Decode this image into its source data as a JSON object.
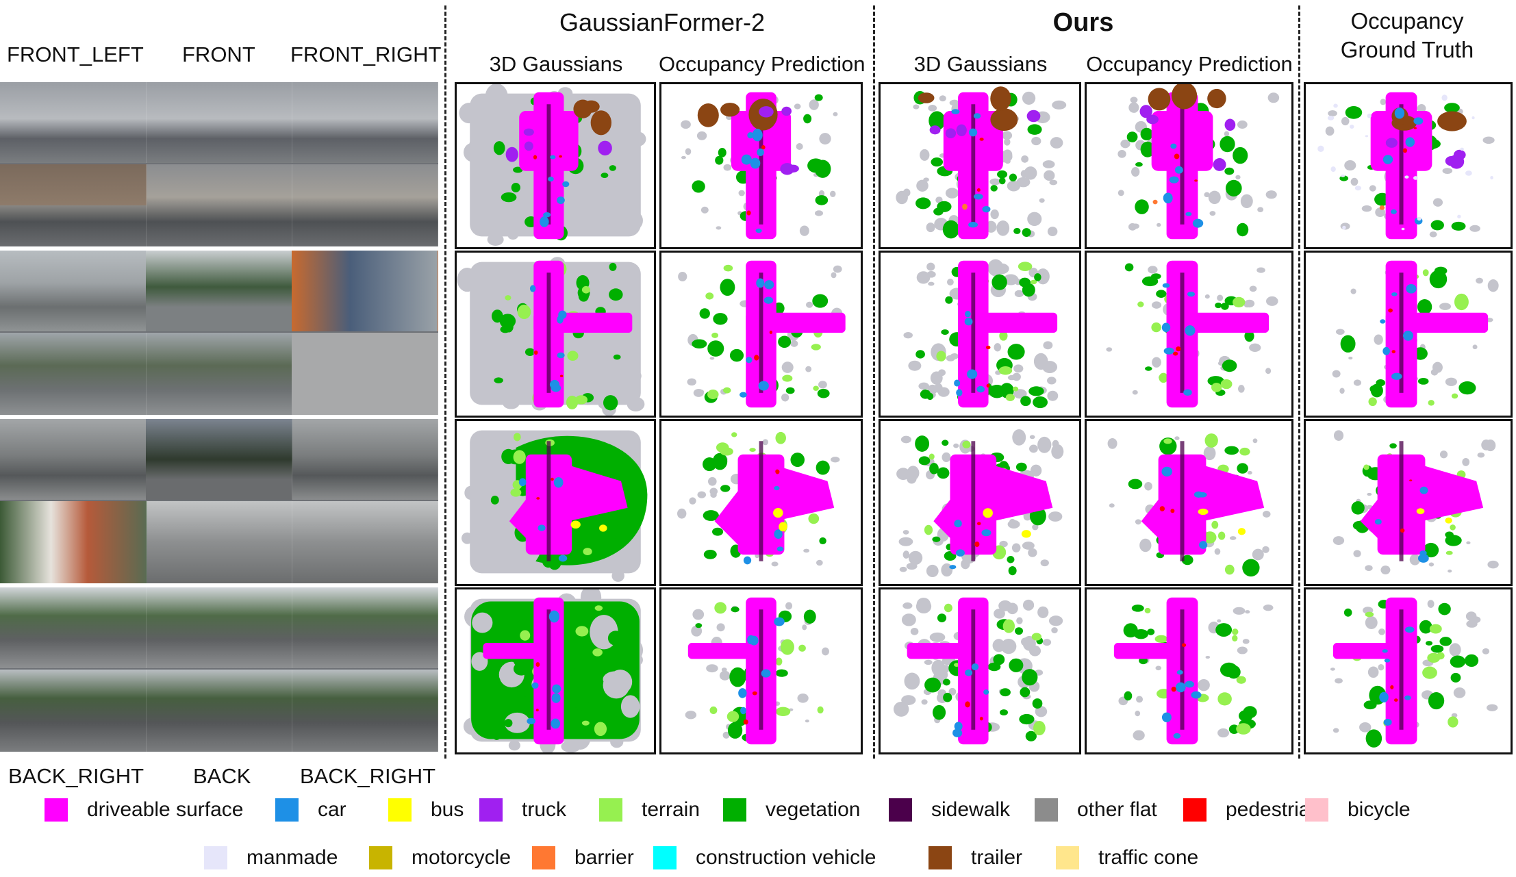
{
  "headers": {
    "method_a": "GaussianFormer-2",
    "method_b": "Ours",
    "gt_line1": "Occupancy",
    "gt_line2": "Ground Truth",
    "sub_gaussians": "3D Gaussians",
    "sub_occupancy": "Occupancy Prediction"
  },
  "camera_labels": {
    "top": [
      "FRONT_LEFT",
      "FRONT",
      "FRONT_RIGHT"
    ],
    "bottom": [
      "BACK_RIGHT",
      "BACK",
      "BACK_RIGHT"
    ]
  },
  "legend": [
    {
      "label": "driveable surface",
      "color": "#ff00ff"
    },
    {
      "label": "car",
      "color": "#1e90e6"
    },
    {
      "label": "bus",
      "color": "#ffff00"
    },
    {
      "label": "truck",
      "color": "#a020f0"
    },
    {
      "label": "terrain",
      "color": "#96f050"
    },
    {
      "label": "vegetation",
      "color": "#00af00"
    },
    {
      "label": "sidewalk",
      "color": "#4b004b"
    },
    {
      "label": "other flat",
      "color": "#8c8c8c"
    },
    {
      "label": "pedestrian",
      "color": "#ff0000"
    },
    {
      "label": "bicycle",
      "color": "#ffc0cb"
    },
    {
      "label": "manmade",
      "color": "#e6e6fa"
    },
    {
      "label": "motorcycle",
      "color": "#c8b400"
    },
    {
      "label": "barrier",
      "color": "#ff7832"
    },
    {
      "label": "construction vehicle",
      "color": "#00ffff"
    },
    {
      "label": "trailer",
      "color": "#8b4513"
    },
    {
      "label": "traffic cone",
      "color": "#ffe68c"
    }
  ],
  "gaussian_gray": "#c4c4cc"
}
